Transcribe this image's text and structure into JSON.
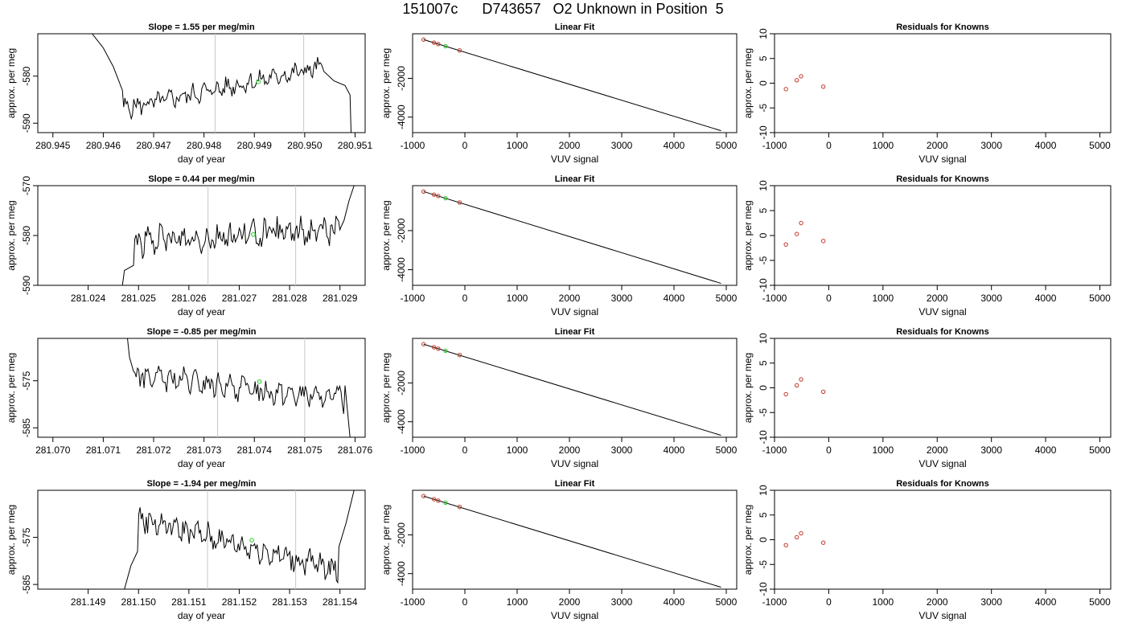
{
  "page_title": "151007c      D743657   O2 Unknown in Position  5",
  "chart_data": [
    {
      "type": "line",
      "title": "Slope =  1.55  per meg/min",
      "xlabel": "day of year",
      "ylabel": "approx. per meg",
      "xlim": [
        280.9447,
        280.9512
      ],
      "ylim": [
        -592,
        -571
      ],
      "xticks": [
        "280.945",
        "280.946",
        "280.947",
        "280.948",
        "280.949",
        "280.950",
        "280.951"
      ],
      "xtick_values": [
        280.945,
        280.946,
        280.947,
        280.948,
        280.949,
        280.95,
        280.951
      ],
      "yticks": [
        "-590",
        "-580"
      ],
      "ytick_values": [
        -590,
        -580
      ],
      "vlines": [
        280.94822,
        280.94998
      ],
      "marker": {
        "x": 280.94908,
        "y": -581.2
      },
      "trace_start": [
        [
          280.94578,
          -571
        ],
        [
          280.946,
          -574
        ],
        [
          280.9462,
          -578
        ],
        [
          280.94638,
          -583
        ]
      ],
      "trace_end": [
        [
          280.95038,
          -579
        ],
        [
          280.95058,
          -581
        ],
        [
          280.9508,
          -582
        ],
        [
          280.9509,
          -584
        ],
        [
          280.95092,
          -592
        ]
      ],
      "trace_noise_t": [
        280.94638,
        280.95038
      ],
      "trace_noise_level": -582.5,
      "trace_noise_amp": 1.6,
      "trace_noise_slope": 1.55
    },
    {
      "type": "line",
      "title": "Linear Fit",
      "xlabel": "VUV signal",
      "ylabel": "approx. per meg",
      "xlim": [
        -1000,
        5200
      ],
      "ylim": [
        -4800,
        300
      ],
      "xticks": [
        "-1000",
        "0",
        "1000",
        "2000",
        "3000",
        "4000",
        "5000"
      ],
      "xtick_values": [
        -1000,
        0,
        1000,
        2000,
        3000,
        4000,
        5000
      ],
      "yticks": [
        "-4000",
        "-2000"
      ],
      "ytick_values": [
        -4000,
        -2000
      ],
      "fit_line": [
        [
          -790,
          0
        ],
        [
          4900,
          -4700
        ]
      ],
      "known_points": [
        [
          -790,
          0
        ],
        [
          -590,
          -160
        ],
        [
          -510,
          -230
        ],
        [
          -100,
          -560
        ]
      ],
      "unknown_point": [
        -370,
        -340
      ]
    },
    {
      "type": "scatter",
      "title": "Residuals for Knowns",
      "xlabel": "VUV signal",
      "ylabel": "approx. per meg",
      "xlim": [
        -1000,
        5200
      ],
      "ylim": [
        -10,
        10
      ],
      "xticks": [
        "-1000",
        "0",
        "1000",
        "2000",
        "3000",
        "4000",
        "5000"
      ],
      "xtick_values": [
        -1000,
        0,
        1000,
        2000,
        3000,
        4000,
        5000
      ],
      "yticks": [
        "-10",
        "-5",
        "0",
        "5",
        "10"
      ],
      "ytick_values": [
        -10,
        -5,
        0,
        5,
        10
      ],
      "points": [
        [
          -790,
          -1.2
        ],
        [
          -590,
          0.6
        ],
        [
          -510,
          1.4
        ],
        [
          -100,
          -0.7
        ]
      ]
    },
    {
      "type": "line",
      "title": "Slope =  0.44  per meg/min",
      "xlabel": "day of year",
      "ylabel": "approx. per meg",
      "xlim": [
        281.023,
        281.0295
      ],
      "ylim": [
        -590,
        -570
      ],
      "xticks": [
        "281.024",
        "281.025",
        "281.026",
        "281.027",
        "281.028",
        "281.029"
      ],
      "xtick_values": [
        281.024,
        281.025,
        281.026,
        281.027,
        281.028,
        281.029
      ],
      "yticks": [
        "-590",
        "-580",
        "-570"
      ],
      "ytick_values": [
        -590,
        -580,
        -570
      ],
      "vlines": [
        281.02638,
        281.02812
      ],
      "marker": {
        "x": 281.02728,
        "y": -579.8
      },
      "trace_start": [
        [
          281.02468,
          -590
        ],
        [
          281.02472,
          -587
        ],
        [
          281.0249,
          -586
        ]
      ],
      "trace_end": [
        [
          281.02908,
          -577
        ],
        [
          281.02918,
          -573
        ],
        [
          281.02928,
          -570
        ]
      ],
      "trace_noise_t": [
        281.0249,
        281.02905
      ],
      "trace_noise_level": -580.0,
      "trace_noise_amp": 2.2,
      "trace_noise_slope": 0.44
    },
    {
      "type": "line",
      "title": "Linear Fit",
      "xlabel": "VUV signal",
      "ylabel": "approx. per meg",
      "xlim": [
        -1000,
        5200
      ],
      "ylim": [
        -4800,
        300
      ],
      "xticks": [
        "-1000",
        "0",
        "1000",
        "2000",
        "3000",
        "4000",
        "5000"
      ],
      "xtick_values": [
        -1000,
        0,
        1000,
        2000,
        3000,
        4000,
        5000
      ],
      "yticks": [
        "-4000",
        "-2000"
      ],
      "ytick_values": [
        -4000,
        -2000
      ],
      "fit_line": [
        [
          -790,
          0
        ],
        [
          4900,
          -4700
        ]
      ],
      "known_points": [
        [
          -790,
          0
        ],
        [
          -590,
          -160
        ],
        [
          -510,
          -230
        ],
        [
          -100,
          -560
        ]
      ],
      "unknown_point": [
        -370,
        -340
      ]
    },
    {
      "type": "scatter",
      "title": "Residuals for Knowns",
      "xlabel": "VUV signal",
      "ylabel": "approx. per meg",
      "xlim": [
        -1000,
        5200
      ],
      "ylim": [
        -10,
        10
      ],
      "xticks": [
        "-1000",
        "0",
        "1000",
        "2000",
        "3000",
        "4000",
        "5000"
      ],
      "xtick_values": [
        -1000,
        0,
        1000,
        2000,
        3000,
        4000,
        5000
      ],
      "yticks": [
        "-10",
        "-5",
        "0",
        "5",
        "10"
      ],
      "ytick_values": [
        -10,
        -5,
        0,
        5,
        10
      ],
      "points": [
        [
          -790,
          -1.8
        ],
        [
          -590,
          0.3
        ],
        [
          -510,
          2.5
        ],
        [
          -100,
          -1.1
        ]
      ]
    },
    {
      "type": "line",
      "title": "Slope =  -0.85  per meg/min",
      "xlabel": "day of year",
      "ylabel": "approx. per meg",
      "xlim": [
        281.0697,
        281.0762
      ],
      "ylim": [
        -587,
        -566
      ],
      "xticks": [
        "281.070",
        "281.071",
        "281.072",
        "281.073",
        "281.074",
        "281.075",
        "281.076"
      ],
      "xtick_values": [
        281.07,
        281.071,
        281.072,
        281.073,
        281.074,
        281.075,
        281.076
      ],
      "yticks": [
        "-585",
        "-575"
      ],
      "ytick_values": [
        -585,
        -575
      ],
      "vlines": [
        281.07327,
        281.075
      ],
      "marker": {
        "x": 281.0741,
        "y": -575.2
      },
      "trace_start": [
        [
          281.07148,
          -566
        ],
        [
          281.07152,
          -570
        ],
        [
          281.0716,
          -573
        ]
      ],
      "trace_end": [
        [
          281.0758,
          -576
        ],
        [
          281.0759,
          -587
        ]
      ],
      "trace_noise_t": [
        281.0716,
        281.0758
      ],
      "trace_noise_level": -576.5,
      "trace_noise_amp": 2.0,
      "trace_noise_slope": -0.85
    },
    {
      "type": "line",
      "title": "Linear Fit",
      "xlabel": "VUV signal",
      "ylabel": "approx. per meg",
      "xlim": [
        -1000,
        5200
      ],
      "ylim": [
        -4800,
        300
      ],
      "xticks": [
        "-1000",
        "0",
        "1000",
        "2000",
        "3000",
        "4000",
        "5000"
      ],
      "xtick_values": [
        -1000,
        0,
        1000,
        2000,
        3000,
        4000,
        5000
      ],
      "yticks": [
        "-4000",
        "-2000"
      ],
      "ytick_values": [
        -4000,
        -2000
      ],
      "fit_line": [
        [
          -790,
          0
        ],
        [
          4900,
          -4700
        ]
      ],
      "known_points": [
        [
          -790,
          0
        ],
        [
          -590,
          -160
        ],
        [
          -510,
          -230
        ],
        [
          -100,
          -560
        ]
      ],
      "unknown_point": [
        -370,
        -340
      ]
    },
    {
      "type": "scatter",
      "title": "Residuals for Knowns",
      "xlabel": "VUV signal",
      "ylabel": "approx. per meg",
      "xlim": [
        -1000,
        5200
      ],
      "ylim": [
        -10,
        10
      ],
      "xticks": [
        "-1000",
        "0",
        "1000",
        "2000",
        "3000",
        "4000",
        "5000"
      ],
      "xtick_values": [
        -1000,
        0,
        1000,
        2000,
        3000,
        4000,
        5000
      ],
      "yticks": [
        "-10",
        "-5",
        "0",
        "5",
        "10"
      ],
      "ytick_values": [
        -10,
        -5,
        0,
        5,
        10
      ],
      "points": [
        [
          -790,
          -1.3
        ],
        [
          -590,
          0.5
        ],
        [
          -510,
          1.7
        ],
        [
          -100,
          -0.8
        ]
      ]
    },
    {
      "type": "line",
      "title": "Slope =  -1.94  per meg/min",
      "xlabel": "day of year",
      "ylabel": "approx. per meg",
      "xlim": [
        281.148,
        281.1545
      ],
      "ylim": [
        -586,
        -565
      ],
      "xticks": [
        "281.149",
        "281.150",
        "281.151",
        "281.152",
        "281.153",
        "281.154"
      ],
      "xtick_values": [
        281.149,
        281.15,
        281.151,
        281.152,
        281.153,
        281.154
      ],
      "yticks": [
        "-585",
        "-575"
      ],
      "ytick_values": [
        -585,
        -575
      ],
      "vlines": [
        281.15137,
        281.15312
      ],
      "marker": {
        "x": 281.15225,
        "y": -575.6
      },
      "trace_start": [
        [
          281.14972,
          -586
        ],
        [
          281.14985,
          -581
        ],
        [
          281.14998,
          -578
        ]
      ],
      "trace_end": [
        [
          281.15398,
          -577
        ],
        [
          281.15412,
          -572
        ],
        [
          281.15428,
          -565
        ]
      ],
      "trace_noise_t": [
        281.14998,
        281.15398
      ],
      "trace_noise_level": -576.5,
      "trace_noise_amp": 2.1,
      "trace_noise_slope": -1.94
    },
    {
      "type": "line",
      "title": "Linear Fit",
      "xlabel": "VUV signal",
      "ylabel": "approx. per meg",
      "xlim": [
        -1000,
        5200
      ],
      "ylim": [
        -4800,
        300
      ],
      "xticks": [
        "-1000",
        "0",
        "1000",
        "2000",
        "3000",
        "4000",
        "5000"
      ],
      "xtick_values": [
        -1000,
        0,
        1000,
        2000,
        3000,
        4000,
        5000
      ],
      "yticks": [
        "-4000",
        "-2000"
      ],
      "ytick_values": [
        -4000,
        -2000
      ],
      "fit_line": [
        [
          -790,
          0
        ],
        [
          4900,
          -4700
        ]
      ],
      "known_points": [
        [
          -790,
          0
        ],
        [
          -590,
          -160
        ],
        [
          -510,
          -230
        ],
        [
          -100,
          -560
        ]
      ],
      "unknown_point": [
        -370,
        -340
      ]
    },
    {
      "type": "scatter",
      "title": "Residuals for Knowns",
      "xlabel": "VUV signal",
      "ylabel": "approx. per meg",
      "xlim": [
        -1000,
        5200
      ],
      "ylim": [
        -10,
        10
      ],
      "xticks": [
        "-1000",
        "0",
        "1000",
        "2000",
        "3000",
        "4000",
        "5000"
      ],
      "xtick_values": [
        -1000,
        0,
        1000,
        2000,
        3000,
        4000,
        5000
      ],
      "yticks": [
        "-10",
        "-5",
        "0",
        "5",
        "10"
      ],
      "ytick_values": [
        -10,
        -5,
        0,
        5,
        10
      ],
      "points": [
        [
          -790,
          -1.1
        ],
        [
          -590,
          0.5
        ],
        [
          -510,
          1.3
        ],
        [
          -100,
          -0.6
        ]
      ]
    }
  ],
  "colors": {
    "trace": "#000000",
    "vline": "#c8c8c8",
    "known": "#c0392b",
    "unknown": "#22cc22",
    "axis": "#000000"
  }
}
